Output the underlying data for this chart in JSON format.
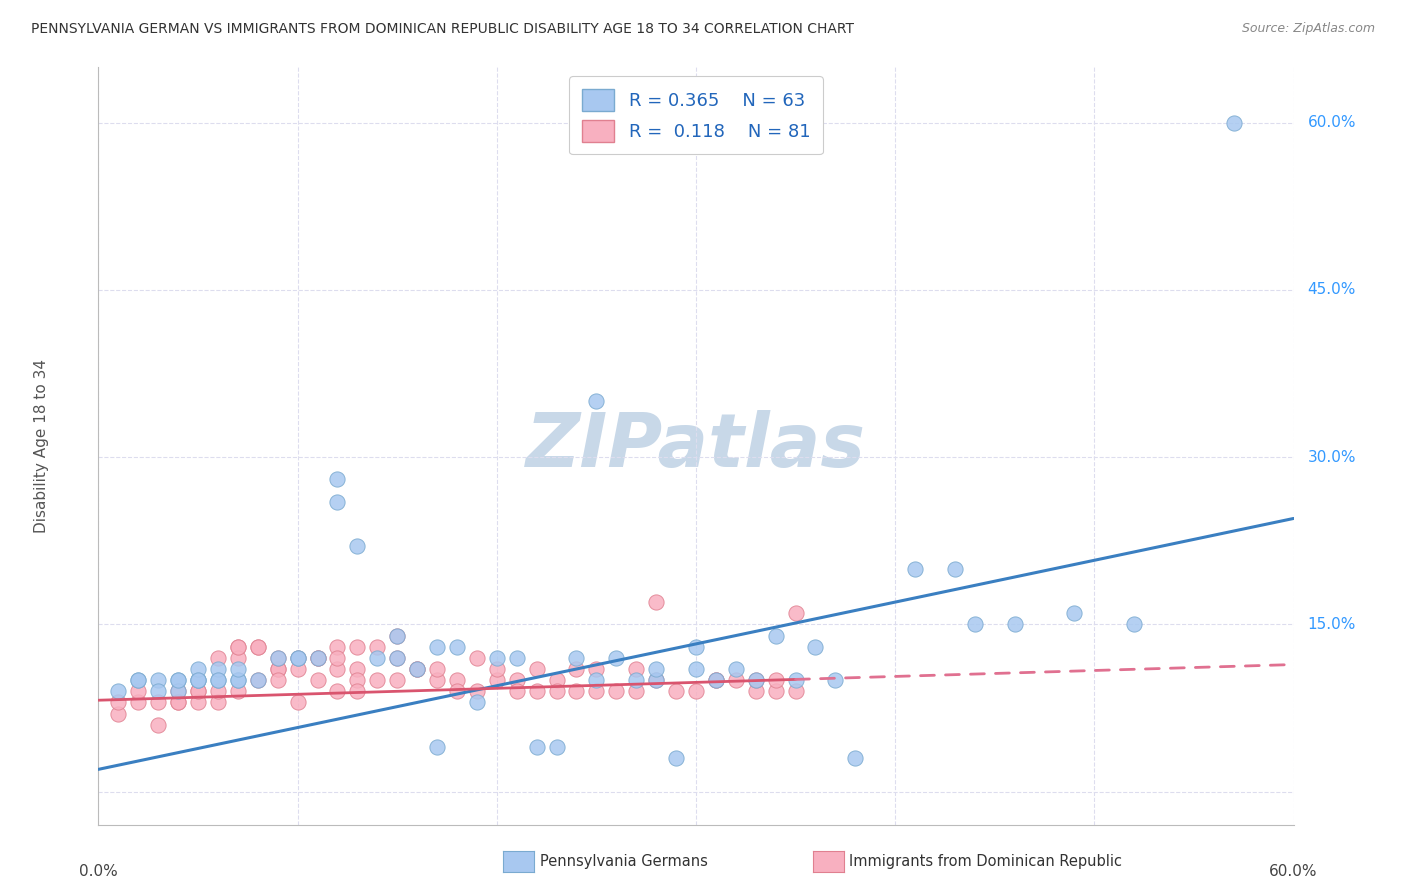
{
  "title": "PENNSYLVANIA GERMAN VS IMMIGRANTS FROM DOMINICAN REPUBLIC DISABILITY AGE 18 TO 34 CORRELATION CHART",
  "source": "Source: ZipAtlas.com",
  "ylabel": "Disability Age 18 to 34",
  "xmin": 0.0,
  "xmax": 0.6,
  "ymin": -0.03,
  "ymax": 0.65,
  "background_color": "#ffffff",
  "watermark_text": "ZIPatlas",
  "watermark_color": "#c8d8e8",
  "series1_color": "#a8c8f0",
  "series1_edge": "#7aaad0",
  "series2_color": "#f8b0c0",
  "series2_edge": "#e08090",
  "line1_color": "#3a7fc1",
  "line2_color": "#d9546e",
  "line2_dash_color": "#e07090",
  "legend_color": "#2266bb",
  "grid_color": "#ddddee",
  "title_color": "#333333",
  "axis_label_color": "#555555",
  "tick_label_color_y": "#3399ff",
  "tick_label_color_x": "#444444",
  "series1_x": [
    0.01,
    0.02,
    0.02,
    0.03,
    0.03,
    0.04,
    0.04,
    0.04,
    0.05,
    0.05,
    0.05,
    0.05,
    0.06,
    0.06,
    0.06,
    0.07,
    0.07,
    0.07,
    0.08,
    0.09,
    0.1,
    0.1,
    0.11,
    0.12,
    0.12,
    0.13,
    0.14,
    0.15,
    0.15,
    0.16,
    0.17,
    0.17,
    0.18,
    0.19,
    0.2,
    0.21,
    0.22,
    0.23,
    0.24,
    0.25,
    0.25,
    0.26,
    0.27,
    0.28,
    0.28,
    0.29,
    0.3,
    0.3,
    0.31,
    0.32,
    0.33,
    0.34,
    0.35,
    0.36,
    0.37,
    0.38,
    0.41,
    0.43,
    0.44,
    0.46,
    0.49,
    0.52,
    0.57
  ],
  "series1_y": [
    0.09,
    0.1,
    0.1,
    0.1,
    0.09,
    0.1,
    0.09,
    0.1,
    0.1,
    0.1,
    0.11,
    0.1,
    0.1,
    0.11,
    0.1,
    0.1,
    0.1,
    0.11,
    0.1,
    0.12,
    0.12,
    0.12,
    0.12,
    0.28,
    0.26,
    0.22,
    0.12,
    0.14,
    0.12,
    0.11,
    0.13,
    0.04,
    0.13,
    0.08,
    0.12,
    0.12,
    0.04,
    0.04,
    0.12,
    0.1,
    0.35,
    0.12,
    0.1,
    0.1,
    0.11,
    0.03,
    0.13,
    0.11,
    0.1,
    0.11,
    0.1,
    0.14,
    0.1,
    0.13,
    0.1,
    0.03,
    0.2,
    0.2,
    0.15,
    0.15,
    0.16,
    0.15,
    0.6
  ],
  "series2_x": [
    0.01,
    0.01,
    0.02,
    0.02,
    0.03,
    0.03,
    0.04,
    0.04,
    0.04,
    0.05,
    0.05,
    0.05,
    0.06,
    0.06,
    0.06,
    0.07,
    0.07,
    0.07,
    0.07,
    0.08,
    0.08,
    0.08,
    0.09,
    0.09,
    0.09,
    0.09,
    0.1,
    0.1,
    0.1,
    0.11,
    0.11,
    0.11,
    0.12,
    0.12,
    0.12,
    0.12,
    0.13,
    0.13,
    0.13,
    0.13,
    0.14,
    0.14,
    0.15,
    0.15,
    0.15,
    0.16,
    0.16,
    0.17,
    0.17,
    0.18,
    0.18,
    0.19,
    0.19,
    0.2,
    0.2,
    0.21,
    0.21,
    0.22,
    0.22,
    0.23,
    0.23,
    0.24,
    0.24,
    0.25,
    0.25,
    0.26,
    0.27,
    0.27,
    0.28,
    0.28,
    0.29,
    0.3,
    0.31,
    0.31,
    0.32,
    0.33,
    0.33,
    0.34,
    0.34,
    0.35,
    0.35
  ],
  "series2_y": [
    0.07,
    0.08,
    0.08,
    0.09,
    0.06,
    0.08,
    0.08,
    0.09,
    0.08,
    0.09,
    0.08,
    0.09,
    0.12,
    0.08,
    0.09,
    0.13,
    0.09,
    0.12,
    0.13,
    0.13,
    0.1,
    0.13,
    0.11,
    0.11,
    0.1,
    0.12,
    0.12,
    0.08,
    0.11,
    0.12,
    0.1,
    0.12,
    0.13,
    0.09,
    0.11,
    0.12,
    0.11,
    0.1,
    0.13,
    0.09,
    0.13,
    0.1,
    0.14,
    0.1,
    0.12,
    0.11,
    0.11,
    0.1,
    0.11,
    0.1,
    0.09,
    0.09,
    0.12,
    0.1,
    0.11,
    0.1,
    0.09,
    0.11,
    0.09,
    0.1,
    0.09,
    0.11,
    0.09,
    0.09,
    0.11,
    0.09,
    0.11,
    0.09,
    0.1,
    0.17,
    0.09,
    0.09,
    0.1,
    0.1,
    0.1,
    0.09,
    0.1,
    0.09,
    0.1,
    0.09,
    0.16
  ],
  "line1_x_start": 0.0,
  "line1_x_end": 0.6,
  "line1_y_start": 0.02,
  "line1_y_end": 0.245,
  "line2_solid_x_start": 0.0,
  "line2_solid_x_end": 0.35,
  "line2_dash_x_start": 0.35,
  "line2_dash_x_end": 0.6,
  "line2_y_start": 0.082,
  "line2_y_end": 0.114,
  "legend_label1": "Pennsylvania Germans",
  "legend_label2": "Immigrants from Dominican Republic",
  "legend_r1": "R = 0.365",
  "legend_n1": "N = 63",
  "legend_r2": "R =  0.118",
  "legend_n2": "N = 81"
}
